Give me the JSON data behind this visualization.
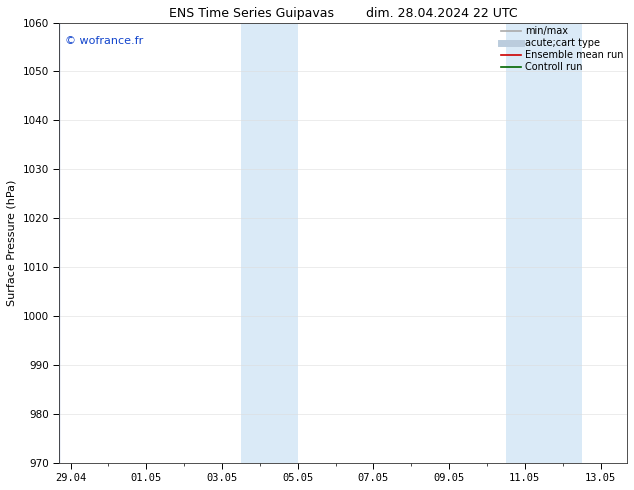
{
  "title_left": "ENS Time Series Guipavas",
  "title_right": "dim. 28.04.2024 22 UTC",
  "ylabel": "Surface Pressure (hPa)",
  "ylim": [
    970,
    1060
  ],
  "yticks": [
    970,
    980,
    990,
    1000,
    1010,
    1020,
    1030,
    1040,
    1050,
    1060
  ],
  "xtick_labels": [
    "29.04",
    "01.05",
    "03.05",
    "05.05",
    "07.05",
    "09.05",
    "11.05",
    "13.05"
  ],
  "xtick_positions": [
    0,
    2,
    4,
    6,
    8,
    10,
    12,
    14
  ],
  "xlim": [
    -0.3,
    14.7
  ],
  "shaded_regions": [
    {
      "start": 4.5,
      "end": 6.0
    },
    {
      "start": 11.5,
      "end": 12.5
    },
    {
      "start": 12.5,
      "end": 13.5
    }
  ],
  "shaded_color": "#daeaf7",
  "left_blue_line_x": -0.3,
  "watermark_text": "© wofrance.fr",
  "watermark_color": "#1144cc",
  "watermark_fontsize": 8,
  "legend_items": [
    {
      "label": "min/max",
      "color": "#aaaaaa",
      "linewidth": 1.2
    },
    {
      "label": "acute;cart type",
      "color": "#bbccdd",
      "linewidth": 5
    },
    {
      "label": "Ensemble mean run",
      "color": "#cc0000",
      "linewidth": 1.2
    },
    {
      "label": "Controll run",
      "color": "#006600",
      "linewidth": 1.2
    }
  ],
  "background_color": "#ffffff",
  "title_fontsize": 9,
  "axis_label_fontsize": 8,
  "tick_fontsize": 7.5,
  "legend_fontsize": 7
}
